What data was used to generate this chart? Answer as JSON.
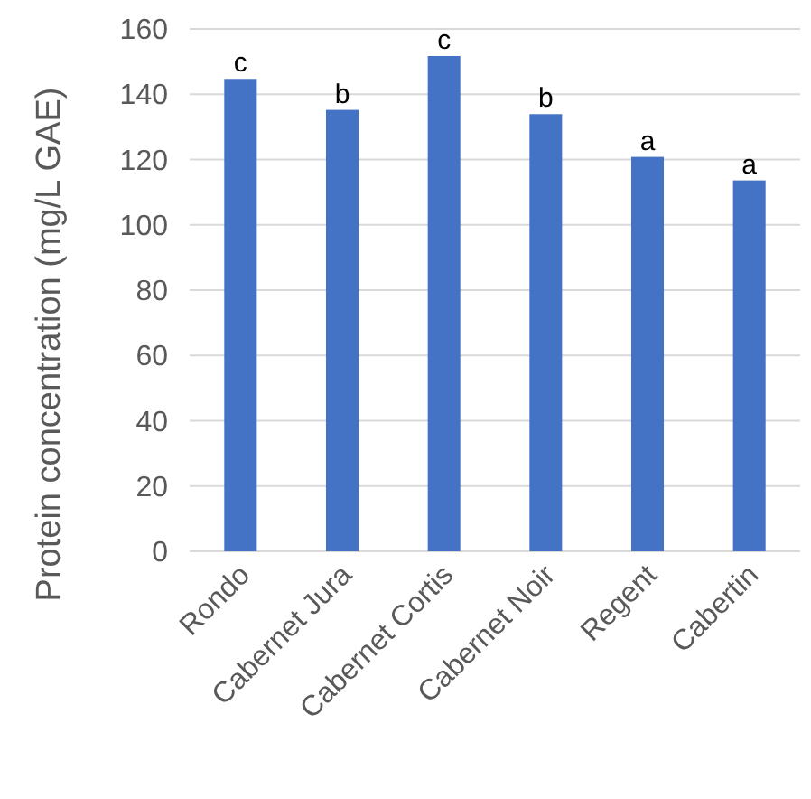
{
  "chart_data": {
    "type": "bar",
    "ylabel": "Protein concentration (mg/L GAE)",
    "categories": [
      "Rondo",
      "Cabernet Jura",
      "Cabernet Cortis",
      "Cabernet Noir",
      "Regent",
      "Cabertin"
    ],
    "values": [
      144.7,
      135.2,
      151.7,
      133.9,
      120.8,
      113.6
    ],
    "color": "#4472c4",
    "ylim": [
      0,
      160
    ],
    "yticks": [
      0,
      20,
      40,
      60,
      80,
      100,
      120,
      140,
      160
    ],
    "grid": "y",
    "annotations": [
      {
        "text": "c",
        "x": "Rondo",
        "y": 144.7
      },
      {
        "text": "b",
        "x": "Cabernet Jura",
        "y": 135.2
      },
      {
        "text": "c",
        "x": "Cabernet Cortis",
        "y": 151.7
      },
      {
        "text": "b",
        "x": "Cabernet Noir",
        "y": 133.9
      },
      {
        "text": "a",
        "x": "Regent",
        "y": 120.8
      },
      {
        "text": "a",
        "x": "Cabertin",
        "y": 113.6
      }
    ]
  }
}
